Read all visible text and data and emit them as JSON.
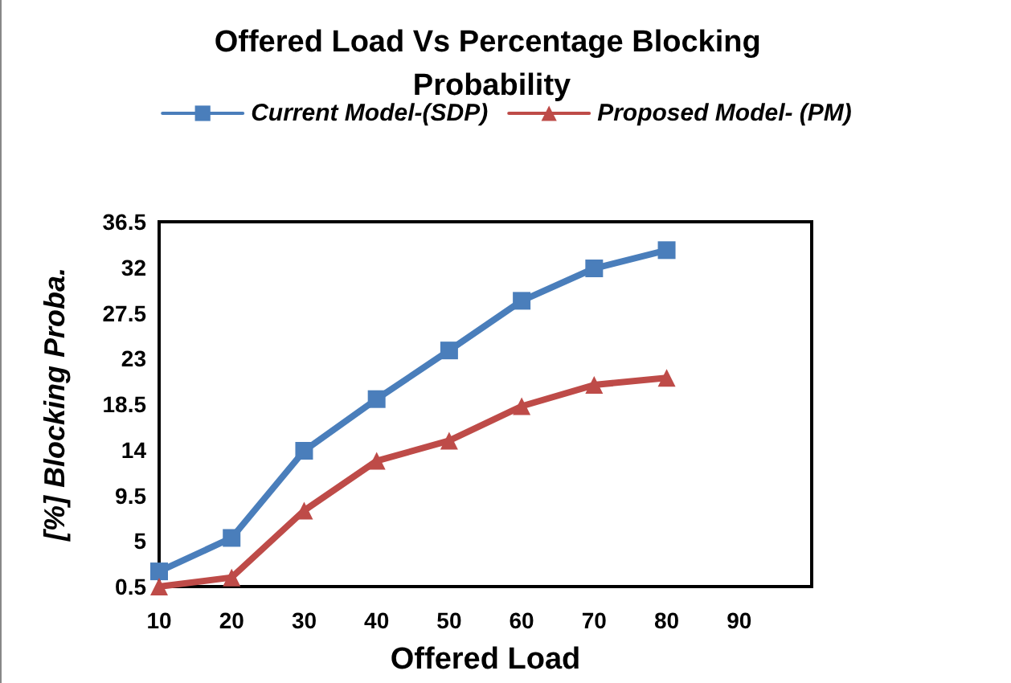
{
  "chart_data": {
    "type": "line",
    "title": "Offered Load Vs Percentage Blocking Probability",
    "xlabel": "Offered Load",
    "ylabel": "[%] Blocking Proba.",
    "x": [
      10,
      20,
      30,
      40,
      50,
      60,
      70,
      80
    ],
    "series": [
      {
        "name": "Current Model-(SDP)",
        "color": "#4a7ebb",
        "marker": "square",
        "values": [
          2,
          5.3,
          13.9,
          19,
          23.8,
          28.7,
          31.9,
          33.7
        ]
      },
      {
        "name": "Proposed Model- (PM)",
        "color": "#be4b48",
        "marker": "triangle",
        "values": [
          0.5,
          1.4,
          8,
          12.9,
          14.9,
          18.3,
          20.4,
          21.1
        ]
      }
    ],
    "xlim": [
      10,
      100
    ],
    "xticks": [
      10,
      20,
      30,
      40,
      50,
      60,
      70,
      80,
      90
    ],
    "ylim": [
      0.5,
      36.5
    ],
    "yticks": [
      0.5,
      5,
      9.5,
      14,
      18.5,
      23,
      27.5,
      32,
      36.5
    ],
    "grid": false,
    "legend": "top",
    "line_style": "solid"
  }
}
